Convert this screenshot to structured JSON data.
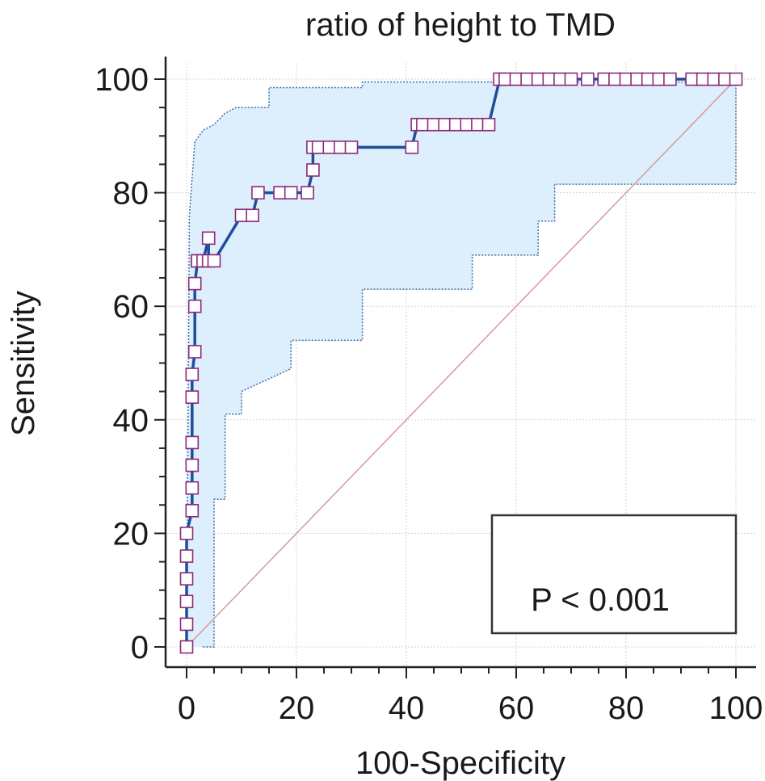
{
  "chart_data": {
    "type": "line",
    "title": "ratio of height to TMD",
    "xlabel": "100-Specificity",
    "ylabel": "Sensitivity",
    "xlim": [
      0,
      100
    ],
    "ylim": [
      0,
      100
    ],
    "x_ticks": [
      "0",
      "20",
      "40",
      "60",
      "80",
      "100"
    ],
    "y_ticks": [
      "0",
      "20",
      "40",
      "60",
      "80",
      "100"
    ],
    "grid": true,
    "annotation": "P < 0.001",
    "colors": {
      "roc_line": "#1f4e99",
      "marker_edge": "#8b2a7b",
      "ci_fill": "#ddeefc",
      "ci_edge": "#3a6fa8",
      "reference_line": "#d49a9a",
      "grid": "#d3d3d3",
      "axis": "#222222"
    },
    "series": [
      {
        "kind": "roc",
        "x": [
          0,
          0,
          0,
          0,
          0,
          0,
          1,
          1,
          1,
          1,
          1,
          1,
          1.5,
          1.5,
          1.5,
          2,
          2,
          3,
          4,
          4,
          5,
          10,
          12,
          13,
          17,
          19,
          22,
          23,
          23,
          24,
          26,
          28,
          30,
          41,
          42,
          43,
          45,
          47,
          49,
          51,
          53,
          55,
          57,
          58,
          60,
          62,
          64,
          66,
          68,
          70,
          73,
          76,
          78,
          80,
          82,
          84,
          86,
          88,
          92,
          94,
          96,
          98,
          100
        ],
        "y": [
          0,
          4,
          8,
          12,
          16,
          20,
          24,
          28,
          32,
          36,
          44,
          48,
          52,
          60,
          64,
          68,
          68,
          68,
          72,
          68,
          68,
          76,
          76,
          80,
          80,
          80,
          80,
          84,
          88,
          88,
          88,
          88,
          88,
          88,
          92,
          92,
          92,
          92,
          92,
          92,
          92,
          92,
          100,
          100,
          100,
          100,
          100,
          100,
          100,
          100,
          100,
          100,
          100,
          100,
          100,
          100,
          100,
          100,
          100,
          100,
          100,
          100,
          100
        ]
      },
      {
        "kind": "ci_upper",
        "x": [
          0,
          0.5,
          1.5,
          3,
          5,
          7,
          9,
          15,
          15,
          32,
          32,
          100
        ],
        "y": [
          0,
          76,
          89,
          91,
          92,
          94,
          95,
          95,
          98.5,
          98.5,
          99.5,
          99.5
        ]
      },
      {
        "kind": "ci_lower",
        "x": [
          3,
          5,
          5,
          7,
          7,
          10,
          10,
          19,
          19,
          32,
          32,
          52,
          52,
          64,
          64,
          67,
          67,
          100,
          100
        ],
        "y": [
          0,
          0,
          26,
          26,
          41,
          41,
          45,
          49,
          54,
          54,
          63,
          63,
          69,
          69,
          75,
          75,
          81.5,
          81.5,
          100
        ]
      },
      {
        "kind": "reference",
        "x": [
          0,
          100
        ],
        "y": [
          0,
          100
        ]
      }
    ]
  }
}
